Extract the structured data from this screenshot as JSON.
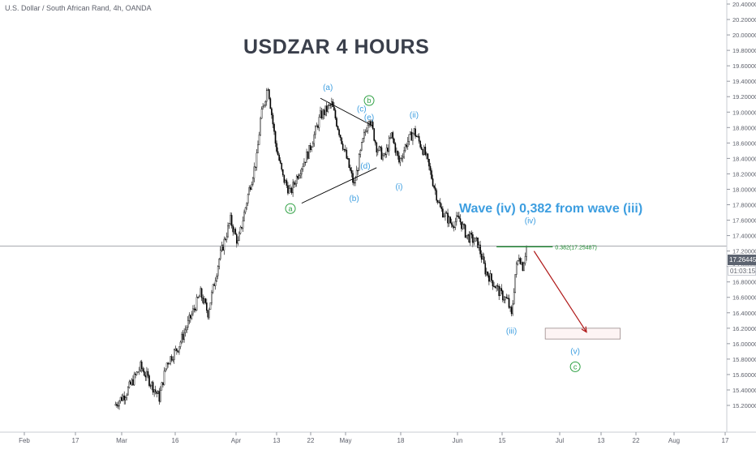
{
  "header": {
    "symbol_title": "U.S. Dollar / South African Rand, 4h, OANDA",
    "chart_title": "USDZAR 4 HOURS"
  },
  "annotation": {
    "wave_note": "Wave (iv) 0,382 from wave (iii)",
    "fib_label": "0.382(17.25487)"
  },
  "price_scale": {
    "last_price": "17.26445",
    "countdown": "01:03:15"
  },
  "colors": {
    "candle": "#000000",
    "wave_blue": "#3d9ee0",
    "wave_green": "#2ea043",
    "fib_green": "#1b8a2e",
    "arrow_red": "#b01919",
    "grid": "#e1e3e8",
    "axis_text": "#5d606b"
  },
  "chart_data": {
    "type": "candlestick",
    "title": "USDZAR 4 HOURS",
    "subtitle": "U.S. Dollar / South African Rand, 4h, OANDA",
    "ylim": [
      15.2,
      20.4
    ],
    "y_ticks": [
      "15.20000",
      "15.40000",
      "15.60000",
      "15.80000",
      "16.00000",
      "16.20000",
      "16.40000",
      "16.60000",
      "16.80000",
      "17.00000",
      "17.20000",
      "17.40000",
      "17.60000",
      "17.80000",
      "18.00000",
      "18.20000",
      "18.40000",
      "18.60000",
      "18.80000",
      "19.00000",
      "19.20000",
      "19.40000",
      "19.60000",
      "19.80000",
      "20.00000",
      "20.20000",
      "20.40000"
    ],
    "x_ticks": [
      "Feb",
      "17",
      "Mar",
      "16",
      "Apr",
      "13",
      "22",
      "May",
      "18",
      "Jun",
      "15",
      "Jul",
      "13",
      "22",
      "Aug",
      "17"
    ],
    "price_path": [
      {
        "date": "Feb 25",
        "price": 15.2
      },
      {
        "date": "Feb 28",
        "price": 15.35
      },
      {
        "date": "Mar 3",
        "price": 15.7
      },
      {
        "date": "Mar 5",
        "price": 15.55
      },
      {
        "date": "Mar 8",
        "price": 15.3
      },
      {
        "date": "Mar 10",
        "price": 15.75
      },
      {
        "date": "Mar 13",
        "price": 15.95
      },
      {
        "date": "Mar 16",
        "price": 16.3
      },
      {
        "date": "Mar 19",
        "price": 16.65
      },
      {
        "date": "Mar 21",
        "price": 16.4
      },
      {
        "date": "Mar 24",
        "price": 17.1
      },
      {
        "date": "Mar 27",
        "price": 17.6
      },
      {
        "date": "Mar 29",
        "price": 17.3
      },
      {
        "date": "Apr 1",
        "price": 18.0
      },
      {
        "date": "Apr 3",
        "price": 18.4
      },
      {
        "date": "Apr 4",
        "price": 18.9
      },
      {
        "date": "Apr 6",
        "price": 19.35
      },
      {
        "date": "Apr 8",
        "price": 18.6
      },
      {
        "date": "Apr 10",
        "price": 18.15
      },
      {
        "date": "Apr 12",
        "price": 17.95
      },
      {
        "date": "Apr 14",
        "price": 18.2
      },
      {
        "date": "Apr 17",
        "price": 18.5
      },
      {
        "date": "Apr 20",
        "price": 18.95
      },
      {
        "date": "Apr 23",
        "price": 19.1
      },
      {
        "date": "Apr 25",
        "price": 18.75
      },
      {
        "date": "Apr 27",
        "price": 18.4
      },
      {
        "date": "Apr 29",
        "price": 18.05
      },
      {
        "date": "May 1",
        "price": 18.55
      },
      {
        "date": "May 3",
        "price": 18.95
      },
      {
        "date": "May 5",
        "price": 18.55
      },
      {
        "date": "May 7",
        "price": 18.4
      },
      {
        "date": "May 9",
        "price": 18.7
      },
      {
        "date": "May 11",
        "price": 18.35
      },
      {
        "date": "May 13",
        "price": 18.6
      },
      {
        "date": "May 15",
        "price": 18.75
      },
      {
        "date": "May 18",
        "price": 18.45
      },
      {
        "date": "May 20",
        "price": 18.1
      },
      {
        "date": "May 22",
        "price": 17.75
      },
      {
        "date": "May 25",
        "price": 17.55
      },
      {
        "date": "May 27",
        "price": 17.62
      },
      {
        "date": "May 29",
        "price": 17.4
      },
      {
        "date": "Jun 1",
        "price": 17.3
      },
      {
        "date": "Jun 3",
        "price": 16.95
      },
      {
        "date": "Jun 5",
        "price": 16.8
      },
      {
        "date": "Jun 7",
        "price": 16.65
      },
      {
        "date": "Jun 9",
        "price": 16.55
      },
      {
        "date": "Jun 10",
        "price": 16.35
      },
      {
        "date": "Jun 11",
        "price": 16.9
      },
      {
        "date": "Jun 12",
        "price": 17.15
      },
      {
        "date": "Jun 13",
        "price": 17.0
      },
      {
        "date": "Jun 14",
        "price": 17.26
      }
    ],
    "last_price": 17.26445,
    "fib_level": {
      "label": "0.382(17.25487)",
      "value": 17.25487
    },
    "wave_labels": [
      {
        "text": "a",
        "style": "circle-green",
        "date": "Apr 12",
        "price": 17.75
      },
      {
        "text": "(a)",
        "style": "blue",
        "date": "Apr 22",
        "price": 19.32
      },
      {
        "text": "(b)",
        "style": "blue",
        "date": "Apr 29",
        "price": 17.88
      },
      {
        "text": "(c)",
        "style": "blue",
        "date": "May 1",
        "price": 19.04
      },
      {
        "text": "b",
        "style": "circle-green",
        "date": "May 3",
        "price": 19.15
      },
      {
        "text": "(d)",
        "style": "blue",
        "date": "May 2",
        "price": 18.3
      },
      {
        "text": "(e)",
        "style": "blue",
        "date": "May 3",
        "price": 18.93
      },
      {
        "text": "(ii)",
        "style": "blue",
        "date": "May 15",
        "price": 18.96
      },
      {
        "text": "(i)",
        "style": "blue",
        "date": "May 11",
        "price": 18.03
      },
      {
        "text": "(iv)",
        "style": "blue",
        "date": "Jun 15",
        "price": 17.59
      },
      {
        "text": "(iii)",
        "style": "blue",
        "date": "Jun 10",
        "price": 16.16
      },
      {
        "text": "(v)",
        "style": "blue",
        "date": "Jun 27",
        "price": 15.9
      },
      {
        "text": "c",
        "style": "circle-green",
        "date": "Jun 27",
        "price": 15.7
      }
    ],
    "trendlines": [
      {
        "from": {
          "date": "Apr 20",
          "price": 19.18
        },
        "to": {
          "date": "May 4",
          "price": 18.82
        }
      },
      {
        "from": {
          "date": "Apr 15",
          "price": 17.82
        },
        "to": {
          "date": "May 5",
          "price": 18.28
        }
      }
    ],
    "projection_arrow": {
      "from": {
        "date": "Jun 16",
        "price": 17.2
      },
      "to": {
        "date": "Jun 30",
        "price": 16.15
      }
    },
    "target_box": {
      "from_date": "Jun 19",
      "to_date": "Jul 9",
      "price_low": 16.06,
      "price_high": 16.2
    }
  }
}
